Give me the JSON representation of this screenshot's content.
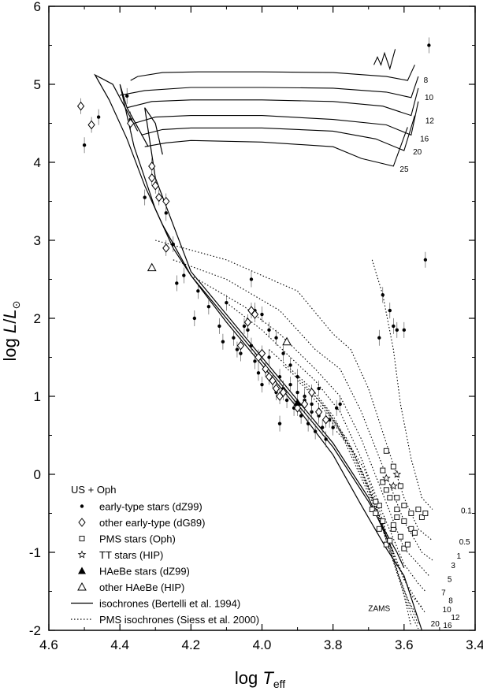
{
  "chart_data": {
    "type": "scatter",
    "xlabel_main": "log ",
    "xlabel_var": "T",
    "xlabel_sub": "eff",
    "ylabel_main": "log ",
    "ylabel_var": "L",
    "ylabel_div": "/",
    "ylabel_var2": "L",
    "ylabel_sun": "⊙",
    "xlim": [
      4.6,
      3.4
    ],
    "ylim": [
      -2,
      6
    ],
    "x_reversed": true,
    "grid": false,
    "legend_placement": "bottom-left",
    "x_ticks": [
      {
        "value": 4.6,
        "label": "4.6"
      },
      {
        "value": 4.4,
        "label": "4.4"
      },
      {
        "value": 4.2,
        "label": "4.2"
      },
      {
        "value": 4.0,
        "label": "4.0"
      },
      {
        "value": 3.8,
        "label": "3.8"
      },
      {
        "value": 3.6,
        "label": "3.6"
      },
      {
        "value": 3.4,
        "label": "3.4"
      }
    ],
    "y_ticks": [
      {
        "value": -2,
        "label": "-2"
      },
      {
        "value": -1,
        "label": "-1"
      },
      {
        "value": 0,
        "label": "0"
      },
      {
        "value": 1,
        "label": "1"
      },
      {
        "value": 2,
        "label": "2"
      },
      {
        "value": 3,
        "label": "3"
      },
      {
        "value": 4,
        "label": "4"
      },
      {
        "value": 5,
        "label": "5"
      },
      {
        "value": 6,
        "label": "6"
      }
    ],
    "legend": {
      "title": "US + Oph",
      "entries": [
        {
          "label": "early-type stars (dZ99)",
          "marker": "dot"
        },
        {
          "label": "other early-type (dG89)",
          "marker": "diamond"
        },
        {
          "label": "PMS stars (Oph)",
          "marker": "square"
        },
        {
          "label": "TT stars (HIP)",
          "marker": "star"
        },
        {
          "label": "HAeBe stars (dZ99)",
          "marker": "filled-triangle"
        },
        {
          "label": "other HAeBe (HIP)",
          "marker": "open-triangle"
        },
        {
          "label": "isochrones (Bertelli et al. 1994)",
          "marker": "solid-line"
        },
        {
          "label": "PMS isochrones (Siess et al. 2000)",
          "marker": "dotted-line"
        }
      ]
    },
    "zams_label": {
      "text": "ZAMS",
      "x": 3.67,
      "y": -1.75
    },
    "bertelli_isochrones": [
      {
        "label": "8",
        "x": [
          4.37,
          4.35,
          4.28,
          4.18,
          4.0,
          3.8,
          3.65,
          3.59,
          3.57
        ],
        "y": [
          5.05,
          5.1,
          5.15,
          5.16,
          5.16,
          5.15,
          5.1,
          5.05,
          5.25
        ]
      },
      {
        "label": "10",
        "x": [
          4.4,
          4.33,
          4.2,
          4.0,
          3.8,
          3.65,
          3.58,
          3.56
        ],
        "y": [
          4.86,
          4.92,
          4.96,
          4.96,
          4.95,
          4.9,
          4.83,
          5.1
        ]
      },
      {
        "label": "12",
        "x": [
          4.38,
          4.31,
          4.2,
          4.0,
          3.8,
          3.66,
          3.58,
          3.56
        ],
        "y": [
          4.7,
          4.78,
          4.8,
          4.8,
          4.78,
          4.72,
          4.6,
          4.95
        ]
      },
      {
        "label": "16",
        "x": [
          4.36,
          4.3,
          4.2,
          4.0,
          3.8,
          3.65,
          3.58,
          3.56
        ],
        "y": [
          4.5,
          4.58,
          4.6,
          4.6,
          4.55,
          4.48,
          4.35,
          4.78
        ]
      },
      {
        "label": "20",
        "x": [
          4.34,
          4.28,
          4.2,
          4.0,
          3.8,
          3.68,
          3.6,
          3.57
        ],
        "y": [
          4.35,
          4.42,
          4.44,
          4.44,
          4.4,
          4.3,
          4.15,
          4.6
        ]
      },
      {
        "label": "25",
        "x": [
          4.33,
          4.27,
          4.2,
          4.0,
          3.8,
          3.72,
          3.63,
          3.59
        ],
        "y": [
          4.2,
          4.25,
          4.28,
          4.26,
          4.2,
          4.05,
          3.95,
          4.45
        ]
      }
    ],
    "bertelli_main_sequence": [
      {
        "x": [
          4.35,
          4.42,
          4.47,
          4.43,
          4.38,
          4.33,
          4.28,
          4.2,
          4.1,
          4.0,
          3.9,
          3.8,
          3.72,
          3.65,
          3.6,
          3.55
        ],
        "y": [
          4.4,
          5.0,
          5.12,
          4.8,
          4.3,
          3.7,
          3.2,
          2.55,
          1.95,
          1.4,
          0.85,
          0.25,
          -0.4,
          -0.95,
          -1.3,
          -2.0
        ]
      },
      {
        "x": [
          4.32,
          4.38,
          4.4,
          4.36,
          4.3,
          4.25,
          4.2,
          4.1,
          4.0,
          3.9,
          3.8,
          3.7,
          3.62,
          3.6
        ],
        "y": [
          4.2,
          4.7,
          5.0,
          4.2,
          3.4,
          2.9,
          2.55,
          2.0,
          1.45,
          0.9,
          0.35,
          -0.35,
          -1.0,
          -1.2
        ]
      },
      {
        "x": [
          4.28,
          4.3,
          4.33,
          4.3,
          4.2,
          4.1,
          4.0,
          3.9,
          3.8,
          3.7,
          3.63
        ],
        "y": [
          4.1,
          4.5,
          4.7,
          3.8,
          2.6,
          2.05,
          1.5,
          0.95,
          0.4,
          -0.3,
          -1.0
        ]
      }
    ],
    "pms_isochrones": [
      {
        "label": "0.1",
        "x": [
          3.69,
          3.66,
          3.63,
          3.61,
          3.58,
          3.55,
          3.52
        ],
        "y": [
          2.75,
          2.3,
          1.6,
          0.9,
          0.2,
          -0.3,
          -0.45
        ]
      },
      {
        "label": "0.5",
        "x": [
          4.3,
          4.1,
          3.9,
          3.8,
          3.75,
          3.7,
          3.65,
          3.6,
          3.56,
          3.52
        ],
        "y": [
          3.0,
          2.75,
          2.35,
          1.8,
          1.6,
          1.1,
          0.4,
          -0.3,
          -0.7,
          -0.85
        ]
      },
      {
        "label": "1",
        "x": [
          4.25,
          4.1,
          3.95,
          3.85,
          3.78,
          3.72,
          3.66,
          3.6,
          3.55,
          3.52
        ],
        "y": [
          2.75,
          2.5,
          2.1,
          1.6,
          1.35,
          0.8,
          0.1,
          -0.6,
          -1.0,
          -1.1
        ]
      },
      {
        "label": "3",
        "x": [
          4.2,
          4.05,
          3.95,
          3.85,
          3.78,
          3.72,
          3.66,
          3.6,
          3.55,
          3.53
        ],
        "y": [
          2.55,
          2.15,
          1.8,
          1.35,
          1.0,
          0.45,
          -0.25,
          -0.95,
          -1.2,
          -1.3
        ]
      },
      {
        "label": "5",
        "x": [
          4.1,
          4.0,
          3.92,
          3.85,
          3.78,
          3.72,
          3.66,
          3.6,
          3.56,
          3.54
        ],
        "y": [
          2.2,
          1.85,
          1.5,
          1.2,
          0.8,
          0.2,
          -0.5,
          -1.15,
          -1.4,
          -1.5
        ]
      },
      {
        "label": "7",
        "x": [
          3.98,
          3.92,
          3.86,
          3.8,
          3.74,
          3.68,
          3.63,
          3.58,
          3.55
        ],
        "y": [
          1.6,
          1.35,
          1.1,
          0.75,
          0.25,
          -0.4,
          -1.0,
          -1.55,
          -1.7
        ]
      },
      {
        "label": "8",
        "x": [
          3.94,
          3.88,
          3.82,
          3.76,
          3.7,
          3.65,
          3.6,
          3.56,
          3.54
        ],
        "y": [
          1.4,
          1.15,
          0.85,
          0.4,
          -0.2,
          -0.8,
          -1.35,
          -1.65,
          -1.78
        ]
      },
      {
        "label": "10",
        "x": [
          3.9,
          3.84,
          3.79,
          3.74,
          3.68,
          3.63,
          3.59,
          3.56
        ],
        "y": [
          1.2,
          0.95,
          0.65,
          0.15,
          -0.45,
          -1.1,
          -1.6,
          -1.85
        ]
      },
      {
        "label": "12",
        "x": [
          3.86,
          3.81,
          3.76,
          3.71,
          3.66,
          3.62,
          3.58,
          3.56
        ],
        "y": [
          1.0,
          0.75,
          0.45,
          -0.05,
          -0.65,
          -1.25,
          -1.72,
          -1.92
        ]
      },
      {
        "label": "16",
        "x": [
          3.82,
          3.78,
          3.74,
          3.69,
          3.65,
          3.61,
          3.58,
          3.56
        ],
        "y": [
          0.75,
          0.55,
          0.25,
          -0.25,
          -0.85,
          -1.4,
          -1.8,
          -1.98
        ]
      },
      {
        "label": "20",
        "x": [
          3.79,
          3.75,
          3.71,
          3.67,
          3.63,
          3.6,
          3.58
        ],
        "y": [
          0.55,
          0.35,
          0.05,
          -0.45,
          -1.05,
          -1.55,
          -1.95
        ]
      }
    ],
    "isochrone_labels_top": [
      {
        "text": "8",
        "x": 3.545,
        "y": 5.02
      },
      {
        "text": "10",
        "x": 3.542,
        "y": 4.8
      },
      {
        "text": "12",
        "x": 3.54,
        "y": 4.5
      },
      {
        "text": "16",
        "x": 3.555,
        "y": 4.27
      },
      {
        "text": "20",
        "x": 3.575,
        "y": 4.1
      },
      {
        "text": "25",
        "x": 3.612,
        "y": 3.88
      }
    ],
    "isochrone_labels_pms": [
      {
        "text": "0.1",
        "x": 3.44,
        "y": -0.5
      },
      {
        "text": "0.5",
        "x": 3.445,
        "y": -0.9
      },
      {
        "text": "1",
        "x": 3.452,
        "y": -1.08
      },
      {
        "text": "3",
        "x": 3.468,
        "y": -1.2
      },
      {
        "text": "5",
        "x": 3.478,
        "y": -1.38
      },
      {
        "text": "7",
        "x": 3.495,
        "y": -1.55
      },
      {
        "text": "8",
        "x": 3.475,
        "y": -1.65
      },
      {
        "text": "10",
        "x": 3.492,
        "y": -1.77
      },
      {
        "text": "12",
        "x": 3.468,
        "y": -1.87
      },
      {
        "text": "16",
        "x": 3.49,
        "y": -1.97
      },
      {
        "text": "20",
        "x": 3.525,
        "y": -1.95
      }
    ],
    "series": [
      {
        "marker": "dot",
        "x": [
          4.5,
          4.46,
          4.38,
          4.37,
          4.33,
          4.27,
          4.25,
          4.24,
          4.22,
          4.19,
          4.18,
          4.15,
          4.12,
          4.1,
          4.08,
          4.06,
          4.05,
          4.04,
          4.03,
          4.02,
          4.01,
          4.0,
          3.99,
          3.98,
          3.97,
          3.96,
          3.95,
          3.94,
          3.93,
          3.92,
          3.91,
          3.9,
          3.89,
          3.88,
          3.87,
          3.86,
          3.85,
          3.84,
          3.83,
          3.82,
          3.81,
          3.8,
          3.79,
          3.78,
          4.02,
          4.0,
          3.98,
          3.96,
          3.94,
          3.92,
          3.9,
          3.88,
          3.86,
          3.84,
          3.95,
          4.07,
          4.11,
          4.03,
          3.67,
          3.66,
          3.64,
          3.63,
          3.62,
          3.6,
          3.54,
          3.53
        ],
        "y": [
          4.22,
          4.58,
          4.85,
          4.55,
          3.55,
          3.35,
          2.95,
          2.45,
          2.55,
          2.0,
          2.35,
          2.15,
          1.9,
          2.2,
          1.75,
          1.55,
          1.9,
          1.85,
          1.65,
          1.45,
          1.3,
          1.15,
          1.35,
          1.5,
          1.2,
          1.05,
          1.25,
          1.1,
          0.95,
          1.15,
          0.85,
          1.05,
          0.75,
          0.95,
          0.65,
          0.8,
          0.55,
          0.75,
          0.6,
          0.45,
          0.7,
          0.6,
          0.85,
          0.9,
          2.1,
          2.05,
          1.85,
          1.75,
          1.55,
          1.4,
          1.25,
          1.0,
          0.9,
          1.1,
          0.65,
          1.6,
          1.7,
          2.5,
          1.75,
          2.3,
          2.1,
          1.9,
          1.85,
          1.85,
          2.75,
          5.5
        ]
      },
      {
        "marker": "diamond",
        "x": [
          4.51,
          4.48,
          4.37,
          4.31,
          4.31,
          4.3,
          4.29,
          4.27,
          4.27,
          4.06,
          4.04,
          4.03,
          4.02,
          4.01,
          4.0,
          3.99,
          3.98,
          3.97,
          3.96,
          3.95,
          3.94,
          3.9,
          3.88,
          3.86,
          3.84,
          3.82
        ],
        "y": [
          4.72,
          4.48,
          4.5,
          3.95,
          3.8,
          3.7,
          3.55,
          3.5,
          2.9,
          1.65,
          1.95,
          2.1,
          2.05,
          1.5,
          1.55,
          1.35,
          1.25,
          1.2,
          1.1,
          1.0,
          1.05,
          0.85,
          0.9,
          1.05,
          0.8,
          0.7
        ]
      },
      {
        "marker": "square",
        "x": [
          3.69,
          3.68,
          3.67,
          3.66,
          3.66,
          3.65,
          3.64,
          3.63,
          3.63,
          3.62,
          3.62,
          3.61,
          3.6,
          3.6,
          3.59,
          3.58,
          3.58,
          3.57,
          3.56,
          3.55,
          3.54,
          3.66,
          3.65,
          3.64,
          3.67,
          3.62,
          3.61,
          3.6,
          3.65,
          3.68,
          3.63
        ],
        "y": [
          -0.45,
          -0.5,
          -0.4,
          -0.6,
          -0.1,
          -0.2,
          -0.3,
          -0.7,
          0.1,
          -0.45,
          -0.55,
          -0.8,
          -0.6,
          -0.95,
          -0.9,
          -0.5,
          -0.7,
          -0.75,
          -0.45,
          -0.55,
          -0.5,
          0.05,
          -0.9,
          -0.85,
          -0.7,
          -0.3,
          -0.15,
          -0.4,
          0.3,
          -0.35,
          -0.65
        ]
      },
      {
        "marker": "star",
        "x": [
          3.65,
          3.63,
          3.62
        ],
        "y": [
          -0.05,
          -0.15,
          0.0
        ]
      },
      {
        "marker": "filled-triangle",
        "x": [
          3.9
        ],
        "y": [
          0.92
        ]
      },
      {
        "marker": "open-triangle",
        "x": [
          4.31,
          3.93
        ],
        "y": [
          2.65,
          1.7
        ]
      }
    ],
    "bent_stub": {
      "x": [
        3.685,
        3.675,
        3.665,
        3.655,
        3.64,
        3.625
      ],
      "y": [
        5.25,
        5.35,
        5.25,
        5.4,
        5.2,
        5.45
      ]
    }
  }
}
